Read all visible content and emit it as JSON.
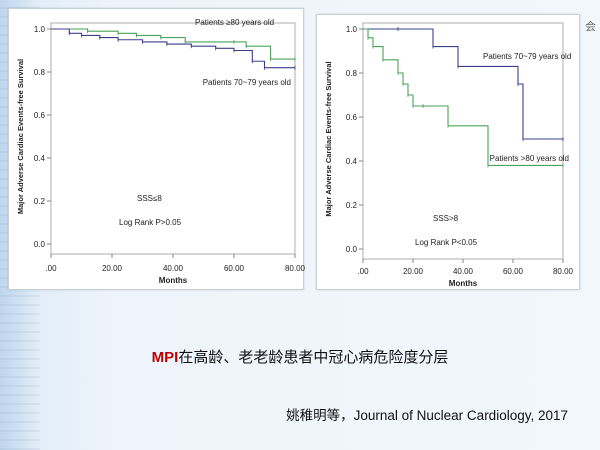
{
  "chart_data": [
    {
      "type": "line",
      "subtype": "step",
      "title": "",
      "xlabel": "Months",
      "ylabel": "Major Adverse Cardiac Events-free Survival",
      "xlim": [
        0,
        80
      ],
      "ylim": [
        0,
        1.0
      ],
      "xticks": [
        0,
        20,
        40,
        60,
        80
      ],
      "xtick_labels": [
        ".00",
        "20.00",
        "40.00",
        "60.00",
        "80.00"
      ],
      "yticks": [
        0,
        0.2,
        0.4,
        0.6,
        0.8,
        1.0
      ],
      "ytick_labels": [
        "0.0",
        "0.2",
        "0.4",
        "0.6",
        "0.8",
        "1.0"
      ],
      "grid": false,
      "series": [
        {
          "name": "Patients ≥80 years old",
          "color": "#4aa35a",
          "x": [
            0,
            12,
            22,
            28,
            36,
            44,
            60,
            64,
            72,
            80
          ],
          "y": [
            1.0,
            0.99,
            0.98,
            0.97,
            0.96,
            0.94,
            0.94,
            0.92,
            0.86,
            0.86
          ]
        },
        {
          "name": "Patients 70~79 years old",
          "color": "#3a3f8c",
          "x": [
            0,
            6,
            10,
            16,
            22,
            30,
            38,
            46,
            54,
            60,
            66,
            70,
            80
          ],
          "y": [
            1.0,
            0.98,
            0.97,
            0.96,
            0.95,
            0.94,
            0.93,
            0.92,
            0.91,
            0.9,
            0.85,
            0.82,
            0.82
          ]
        }
      ],
      "annotations": [
        "SSS≤8",
        "Log Rank P>0.05"
      ]
    },
    {
      "type": "line",
      "subtype": "step",
      "title": "",
      "xlabel": "Months",
      "ylabel": "Major Adverse Cardiac Events-free Survival",
      "xlim": [
        0,
        80
      ],
      "ylim": [
        0,
        1.0
      ],
      "xticks": [
        0,
        20,
        40,
        60,
        80
      ],
      "xtick_labels": [
        ".00",
        "20.00",
        "40.00",
        "60.00",
        "80.00"
      ],
      "yticks": [
        0,
        0.2,
        0.4,
        0.6,
        0.8,
        1.0
      ],
      "ytick_labels": [
        "0.0",
        "0.2",
        "0.4",
        "0.6",
        "0.8",
        "1.0"
      ],
      "grid": false,
      "series": [
        {
          "name": "Patients 70~79 years old",
          "color": "#3a3f8c",
          "x": [
            0,
            14,
            28,
            38,
            62,
            64,
            80
          ],
          "y": [
            1.0,
            1.0,
            0.92,
            0.83,
            0.75,
            0.5,
            0.5
          ]
        },
        {
          "name": "Patients >80 years old",
          "color": "#4aa35a",
          "x": [
            0,
            2,
            4,
            8,
            14,
            16,
            18,
            20,
            24,
            34,
            50,
            80
          ],
          "y": [
            1.0,
            0.96,
            0.92,
            0.86,
            0.8,
            0.75,
            0.7,
            0.65,
            0.65,
            0.56,
            0.38,
            0.38
          ]
        }
      ],
      "annotations": [
        "SSS>8",
        "Log Rank P<0.05"
      ]
    }
  ],
  "caption": {
    "highlight": "MPI",
    "text": "在高龄、老老龄患者中冠心病危险度分层"
  },
  "citation": "姚稚明等，Journal of Nuclear Cardiology, 2017",
  "corner_glyph": "会"
}
